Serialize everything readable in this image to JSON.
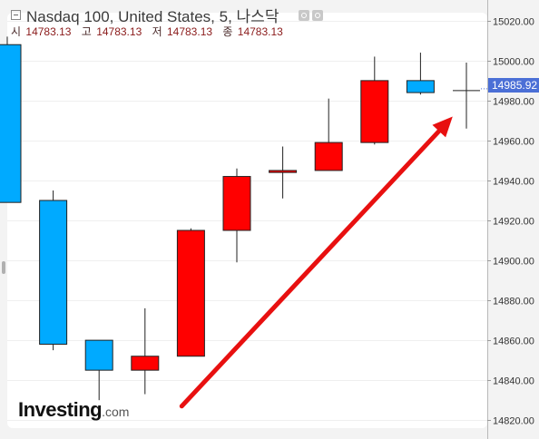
{
  "header": {
    "title": "Nasdaq 100, United States, 5, 나스닥",
    "ohlc": [
      {
        "label": "시",
        "value": "14783.13"
      },
      {
        "label": "고",
        "value": "14783.13"
      },
      {
        "label": "저",
        "value": "14783.13"
      },
      {
        "label": "종",
        "value": "14783.13"
      }
    ]
  },
  "logo": {
    "main": "Investing",
    "suffix": ".com"
  },
  "current_price": {
    "label": "14985.92",
    "value": 14985.92
  },
  "colors": {
    "up": "#ff0000",
    "down": "#00aaff",
    "arrow": "#e81010",
    "price_tag": "#4b6fd6"
  },
  "chart_data": {
    "type": "candlestick",
    "ylim": [
      14816,
      15024
    ],
    "y_ticks": [
      14820,
      14840,
      14860,
      14880,
      14900,
      14920,
      14940,
      14960,
      14980,
      15000,
      15020
    ],
    "y_tick_labels": [
      "14820.00",
      "14840.00",
      "14860.00",
      "14880.00",
      "14900.00",
      "14920.00",
      "14940.00",
      "14960.00",
      "14980.00",
      "15000.00",
      "15020.00"
    ],
    "grid": true,
    "candles": [
      {
        "open": 15008,
        "high": 15012,
        "low": 14929,
        "close": 14929
      },
      {
        "open": 14930,
        "high": 14935,
        "low": 14855,
        "close": 14858
      },
      {
        "open": 14860,
        "high": 14860,
        "low": 14830,
        "close": 14845
      },
      {
        "open": 14845,
        "high": 14876,
        "low": 14833,
        "close": 14852
      },
      {
        "open": 14852,
        "high": 14916,
        "low": 14852,
        "close": 14915
      },
      {
        "open": 14915,
        "high": 14946,
        "low": 14899,
        "close": 14942
      },
      {
        "open": 14944,
        "high": 14957,
        "low": 14931,
        "close": 14945
      },
      {
        "open": 14945,
        "high": 14981,
        "low": 14945,
        "close": 14959
      },
      {
        "open": 14959,
        "high": 15002,
        "low": 14958,
        "close": 14990
      },
      {
        "open": 14990,
        "high": 15004,
        "low": 14983,
        "close": 14984
      },
      {
        "open": 14985,
        "high": 14999,
        "low": 14966,
        "close": 14985
      }
    ],
    "annotation": {
      "type": "arrow",
      "from": {
        "index": 3.8,
        "price": 14827
      },
      "to": {
        "index": 9.7,
        "price": 14972
      }
    }
  }
}
